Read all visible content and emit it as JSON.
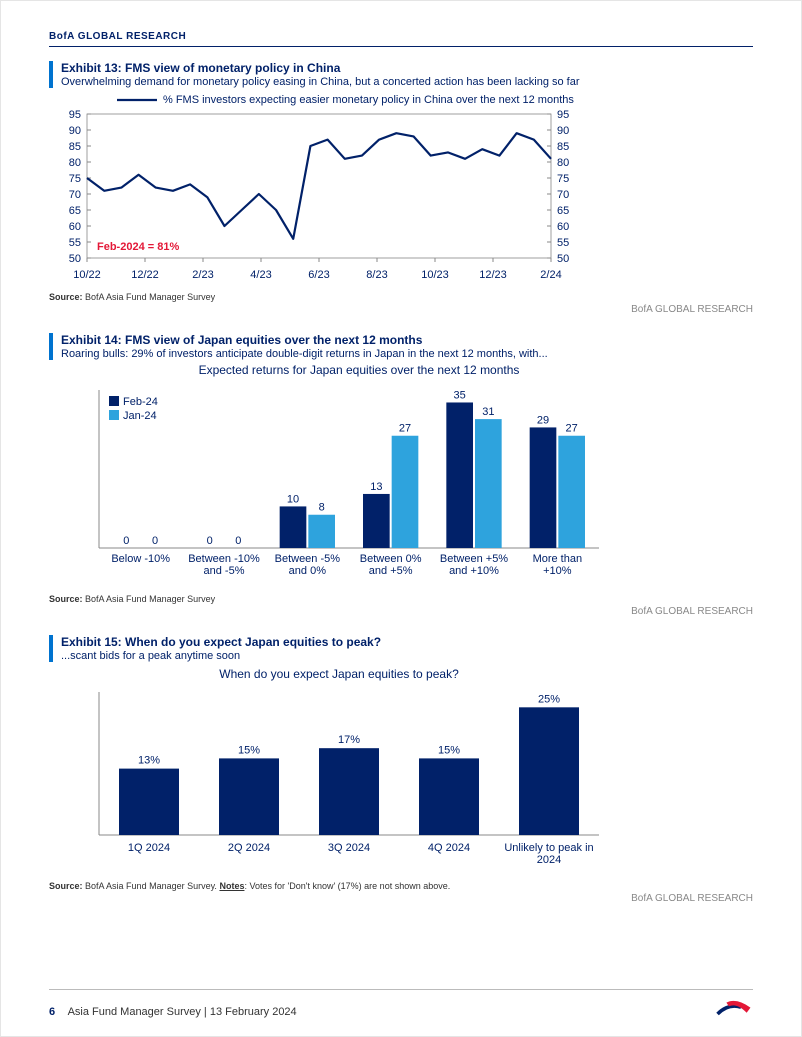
{
  "header": {
    "text": "BofA GLOBAL RESEARCH"
  },
  "brand_footer": "BofA GLOBAL RESEARCH",
  "footer": {
    "page_num": "6",
    "title": "Asia Fund Manager Survey | 13 February 2024"
  },
  "exhibit13": {
    "title": "Exhibit 13: FMS view of monetary policy in China",
    "subtitle": "Overwhelming demand for monetary policy easing in China, but a concerted action has been lacking so far",
    "legend": "% FMS investors expecting easier monetary policy in China over the next 12 months",
    "annotation": "Feb-2024 = 81%",
    "annotation_color": "#e31837",
    "source": "BofA Asia Fund Manager Survey",
    "chart": {
      "type": "line",
      "line_color": "#012169",
      "line_width": 2.2,
      "background_color": "#ffffff",
      "grid_color": "#d0d0d0",
      "ylim": [
        50,
        95
      ],
      "ytick_step": 5,
      "x_labels": [
        "10/22",
        "12/22",
        "2/23",
        "4/23",
        "6/23",
        "8/23",
        "10/23",
        "12/23",
        "2/24"
      ],
      "x_start_month": 10,
      "points_y": [
        75,
        71,
        72,
        76,
        72,
        71,
        73,
        69,
        60,
        65,
        70,
        65,
        56,
        85,
        87,
        81,
        82,
        87,
        89,
        88,
        82,
        83,
        81,
        84,
        82,
        89,
        87,
        81
      ],
      "label_fontsize": 11
    }
  },
  "exhibit14": {
    "title": "Exhibit 14: FMS view of Japan equities over the next 12 months",
    "subtitle": "Roaring bulls: 29% of investors anticipate double-digit returns in Japan in the next 12 months, with...",
    "chart_title": "Expected returns for Japan equities over the next 12 months",
    "source": "BofA Asia Fund Manager Survey",
    "chart": {
      "type": "bar",
      "categories": [
        "Below -10%",
        "Between -10%\nand -5%",
        "Between -5%\nand 0%",
        "Between 0%\nand +5%",
        "Between +5%\nand +10%",
        "More than\n+10%"
      ],
      "series": [
        {
          "name": "Feb-24",
          "color": "#012169",
          "values": [
            0,
            0,
            10,
            13,
            35,
            29
          ]
        },
        {
          "name": "Jan-24",
          "color": "#2ea3dd",
          "values": [
            0,
            0,
            8,
            27,
            31,
            27
          ]
        }
      ],
      "ylim": [
        0,
        38
      ],
      "bar_width": 0.38,
      "label_fontsize": 11,
      "background_color": "#ffffff"
    }
  },
  "exhibit15": {
    "title": "Exhibit 15: When do you expect Japan equities to peak?",
    "subtitle": "...scant bids for a peak anytime soon",
    "chart_title": "When do you expect Japan equities to peak?",
    "source": "BofA Asia Fund Manager Survey.",
    "notes_label": "Notes",
    "notes": ": Votes for 'Don't know' (17%) are not shown above.",
    "chart": {
      "type": "bar",
      "categories": [
        "1Q 2024",
        "2Q 2024",
        "3Q 2024",
        "4Q 2024",
        "Unlikely to peak in\n2024"
      ],
      "values": [
        13,
        15,
        17,
        15,
        25
      ],
      "value_suffix": "%",
      "bar_color": "#012169",
      "ylim": [
        0,
        28
      ],
      "bar_width": 0.6,
      "label_fontsize": 11,
      "background_color": "#ffffff"
    }
  }
}
